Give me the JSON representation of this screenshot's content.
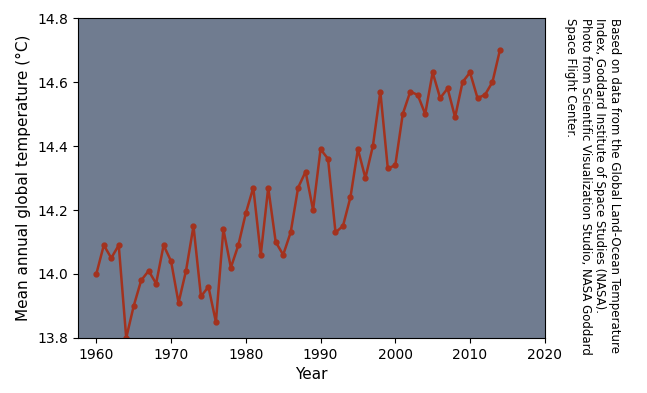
{
  "chart_data": {
    "type": "line",
    "x_label": "Year",
    "y_label": "Mean annual global temperature (°C)",
    "annotation": [
      "Based on data from the Global Land-Ocean Temperature",
      "Index, Goddard Institute of Space Studies (NASA).",
      "Photo from Scientific Visualization Studio, NASA Goddard",
      "Space Flight Center."
    ],
    "x": [
      1960,
      1961,
      1962,
      1963,
      1964,
      1965,
      1966,
      1967,
      1968,
      1969,
      1970,
      1971,
      1972,
      1973,
      1974,
      1975,
      1976,
      1977,
      1978,
      1979,
      1980,
      1981,
      1982,
      1983,
      1984,
      1985,
      1986,
      1987,
      1988,
      1989,
      1990,
      1991,
      1992,
      1993,
      1994,
      1995,
      1996,
      1997,
      1998,
      1999,
      2000,
      2001,
      2002,
      2003,
      2004,
      2005,
      2006,
      2007,
      2008,
      2009,
      2010,
      2011,
      2012,
      2013,
      2014
    ],
    "values": [
      14.0,
      14.09,
      14.05,
      14.09,
      13.8,
      13.9,
      13.98,
      14.01,
      13.97,
      14.09,
      14.04,
      13.91,
      14.01,
      14.15,
      13.93,
      13.96,
      13.85,
      14.14,
      14.02,
      14.09,
      14.19,
      14.27,
      14.06,
      14.27,
      14.1,
      14.06,
      14.13,
      14.27,
      14.32,
      14.2,
      14.39,
      14.36,
      14.13,
      14.15,
      14.24,
      14.39,
      14.3,
      14.4,
      14.57,
      14.33,
      14.34,
      14.5,
      14.57,
      14.56,
      14.5,
      14.63,
      14.55,
      14.58,
      14.49,
      14.6,
      14.63,
      14.55,
      14.56,
      14.6,
      14.7
    ],
    "color": "#a3321e",
    "marker": "o",
    "line_style": "solid",
    "xlim": [
      1957.5,
      2020
    ],
    "xticks": [
      1960,
      1970,
      1980,
      1990,
      2000,
      2010,
      2020
    ],
    "ylim": [
      13.8,
      14.8
    ],
    "yticks": [
      13.8,
      14.0,
      14.2,
      14.4,
      14.6,
      14.8
    ],
    "grid": false
  }
}
